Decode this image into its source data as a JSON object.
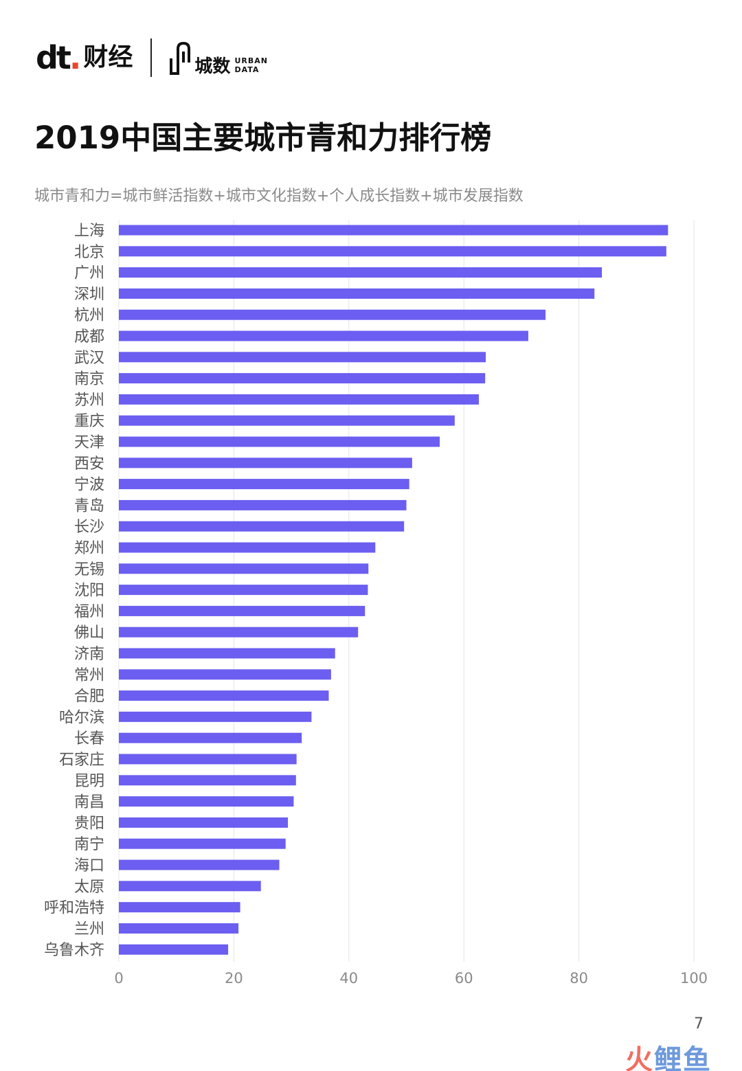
{
  "brand": {
    "dt_mark": "dt",
    "dt_name": "财经",
    "urban_name": "城数",
    "urban_en_1": "URBAN",
    "urban_en_2": "DATA"
  },
  "colors": {
    "bar": "#6b5ef0",
    "grid": "#e4e4e4",
    "axis_text": "#8a8a8a",
    "label_text": "#555555"
  },
  "chart_data": {
    "type": "bar",
    "orientation": "horizontal",
    "title": "2019中国主要城市青和力排行榜",
    "subtitle": "城市青和力=城市鲜活指数+城市文化指数+个人成长指数+城市发展指数",
    "xlim": [
      0,
      100
    ],
    "xticks": [
      "0",
      "20",
      "40",
      "60",
      "80",
      "100"
    ],
    "grid": true,
    "categories": [
      "上海",
      "北京",
      "广州",
      "深圳",
      "杭州",
      "成都",
      "武汉",
      "南京",
      "苏州",
      "重庆",
      "天津",
      "西安",
      "宁波",
      "青岛",
      "长沙",
      "郑州",
      "无锡",
      "沈阳",
      "福州",
      "佛山",
      "济南",
      "常州",
      "合肥",
      "哈尔滨",
      "长春",
      "石家庄",
      "昆明",
      "南昌",
      "贵阳",
      "南宁",
      "海口",
      "太原",
      "呼和浩特",
      "兰州",
      "乌鲁木齐"
    ],
    "values": [
      95.5,
      95.2,
      84.0,
      82.7,
      74.2,
      71.2,
      63.8,
      63.7,
      62.6,
      58.4,
      55.8,
      51.0,
      50.5,
      50.0,
      49.6,
      44.6,
      43.4,
      43.3,
      42.8,
      41.6,
      37.6,
      36.9,
      36.5,
      33.5,
      31.8,
      30.9,
      30.8,
      30.4,
      29.4,
      29.0,
      27.9,
      24.7,
      21.1,
      20.8,
      19.0
    ]
  },
  "footer": {
    "page_number": "7",
    "watermark_1": "火",
    "watermark_2": "鲤",
    "watermark_3": "鱼"
  }
}
